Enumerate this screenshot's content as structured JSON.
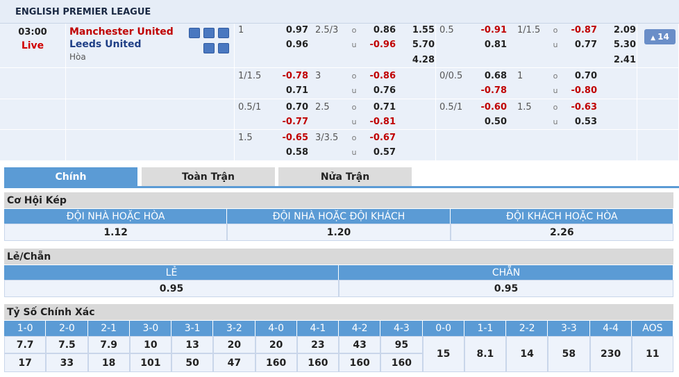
{
  "league": "ENGLISH PREMIER LEAGUE",
  "match": {
    "time": "03:00",
    "status": "Live",
    "home": "Manchester United",
    "away": "Leeds United",
    "draw": "Hòa",
    "more": "14"
  },
  "odds_rows": [
    {
      "hdp": {
        "line": "1",
        "home": "0.97",
        "away": "0.96"
      },
      "ou": {
        "line": "2.5/3",
        "over_label": "o",
        "under_label": "u",
        "over": "0.86",
        "under": "-0.96"
      },
      "x12": [
        "1.55",
        "5.70",
        "4.28"
      ],
      "h1_hdp": {
        "line": "0.5",
        "home": "-0.91",
        "away": "0.81"
      },
      "h1_ou": {
        "line": "1/1.5",
        "over_label": "o",
        "under_label": "u",
        "over": "-0.87",
        "under": "0.77"
      },
      "h1_x12": [
        "2.09",
        "5.30",
        "2.41"
      ]
    },
    {
      "hdp": {
        "line": "1/1.5",
        "home": "-0.78",
        "away": "0.71"
      },
      "ou": {
        "line": "3",
        "over_label": "o",
        "under_label": "u",
        "over": "-0.86",
        "under": "0.76"
      },
      "h1_hdp": {
        "line": "0/0.5",
        "home": "0.68",
        "away": "-0.78"
      },
      "h1_ou": {
        "line": "1",
        "over_label": "o",
        "under_label": "u",
        "over": "0.70",
        "under": "-0.80"
      }
    },
    {
      "hdp": {
        "line": "0.5/1",
        "home": "0.70",
        "away": "-0.77"
      },
      "ou": {
        "line": "2.5",
        "over_label": "o",
        "under_label": "u",
        "over": "0.71",
        "under": "-0.81"
      },
      "h1_hdp": {
        "line": "0.5/1",
        "home": "-0.60",
        "away": "0.50"
      },
      "h1_ou": {
        "line": "1.5",
        "over_label": "o",
        "under_label": "u",
        "over": "-0.63",
        "under": "0.53"
      }
    },
    {
      "hdp": {
        "line": "1.5",
        "home": "-0.65",
        "away": "0.58"
      },
      "ou": {
        "line": "3/3.5",
        "over_label": "o",
        "under_label": "u",
        "over": "-0.67",
        "under": "0.57"
      }
    }
  ],
  "tabs": [
    "Chính",
    "Toàn Trận",
    "Nửa Trận"
  ],
  "double_chance": {
    "title": "Cơ Hội Kép",
    "headers": [
      "ĐỘI NHÀ HOẶC HÒA",
      "ĐỘI NHÀ HOẶC ĐỘI KHÁCH",
      "ĐỘI KHÁCH HOẶC HÒA"
    ],
    "values": [
      "1.12",
      "1.20",
      "2.26"
    ]
  },
  "odd_even": {
    "title": "Lẻ/Chẵn",
    "headers": [
      "LẺ",
      "CHẴN"
    ],
    "values": [
      "0.95",
      "0.95"
    ]
  },
  "correct_score": {
    "title": "Tỷ Số Chính Xác",
    "headers": [
      "1-0",
      "2-0",
      "2-1",
      "3-0",
      "3-1",
      "3-2",
      "4-0",
      "4-1",
      "4-2",
      "4-3",
      "0-0",
      "1-1",
      "2-2",
      "3-3",
      "4-4",
      "AOS"
    ],
    "row1": [
      "7.7",
      "7.5",
      "7.9",
      "10",
      "13",
      "20",
      "20",
      "23",
      "43",
      "95"
    ],
    "row2": [
      "17",
      "33",
      "18",
      "101",
      "50",
      "47",
      "160",
      "160",
      "160",
      "160"
    ],
    "single": [
      "15",
      "8.1",
      "14",
      "58",
      "230",
      "11"
    ]
  }
}
